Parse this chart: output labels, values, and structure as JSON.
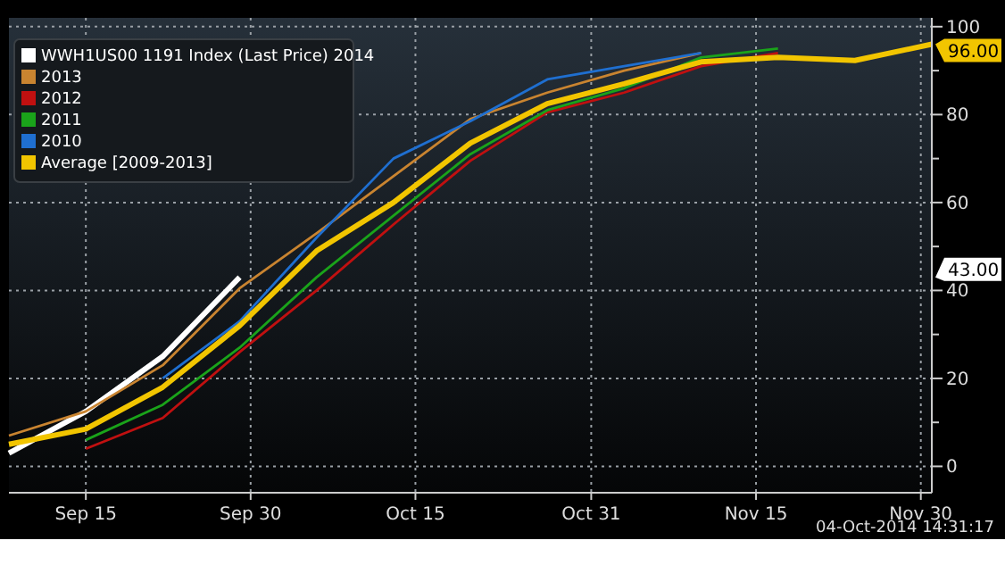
{
  "chart_data": {
    "type": "line",
    "x": [
      "--09-08",
      "--09-15",
      "--09-22",
      "--09-29",
      "--10-06",
      "--10-13",
      "--10-20",
      "--10-27",
      "--11-03",
      "--11-10",
      "--11-17",
      "--11-24",
      "--12-01"
    ],
    "series": [
      {
        "name": "WWH1US00 1191 Index (Last Price) 2014",
        "color": "#ffffff",
        "values": [
          3,
          12.5,
          25,
          43,
          null,
          null,
          null,
          null,
          null,
          null,
          null,
          null,
          null
        ]
      },
      {
        "name": "2013",
        "color": "#c98430",
        "values": [
          7,
          12.5,
          23,
          40.5,
          53,
          66,
          79,
          85,
          90,
          94,
          null,
          null,
          null
        ]
      },
      {
        "name": "2012",
        "color": "#c01010",
        "values": [
          null,
          4,
          11,
          26,
          40,
          55,
          69.5,
          80.5,
          85,
          91,
          94,
          null,
          null
        ]
      },
      {
        "name": "2011",
        "color": "#1aa31a",
        "values": [
          null,
          6,
          14,
          27,
          43,
          57,
          71,
          81,
          86,
          93,
          95,
          null,
          null
        ]
      },
      {
        "name": "2010",
        "color": "#1f6fd0",
        "values": [
          null,
          null,
          20,
          33,
          52,
          70,
          78.5,
          88,
          91,
          94,
          null,
          null,
          null
        ]
      },
      {
        "name": "Average [2009-2013]",
        "color": "#f2c500",
        "values": [
          5,
          8.5,
          18,
          32,
          49,
          60,
          73.5,
          82.5,
          87,
          92,
          93,
          92.3,
          96
        ]
      }
    ],
    "xlim": [
      "--09-08",
      "--12-01"
    ],
    "xticks": [
      {
        "value": "--09-15",
        "label": "Sep 15"
      },
      {
        "value": "--09-30",
        "label": "Sep 30"
      },
      {
        "value": "--10-15",
        "label": "Oct 15"
      },
      {
        "value": "--10-31",
        "label": "Oct 31"
      },
      {
        "value": "--11-15",
        "label": "Nov 15"
      },
      {
        "value": "--11-30",
        "label": "Nov 30"
      }
    ],
    "ylim": [
      -6,
      102
    ],
    "yticks": [
      0,
      {
        "value": 10,
        "label": null
      },
      20,
      {
        "value": 30,
        "label": null
      },
      40,
      {
        "value": 50,
        "label": null
      },
      60,
      {
        "value": 70,
        "label": null
      },
      80,
      {
        "value": 90,
        "label": null
      },
      100
    ],
    "grid": true,
    "legend": "top left",
    "annotations": [
      {
        "text": "96.00",
        "x": "--12-01",
        "y": 96
      },
      "43.00",
      "04-Oct-2014 14:31:17"
    ]
  }
}
